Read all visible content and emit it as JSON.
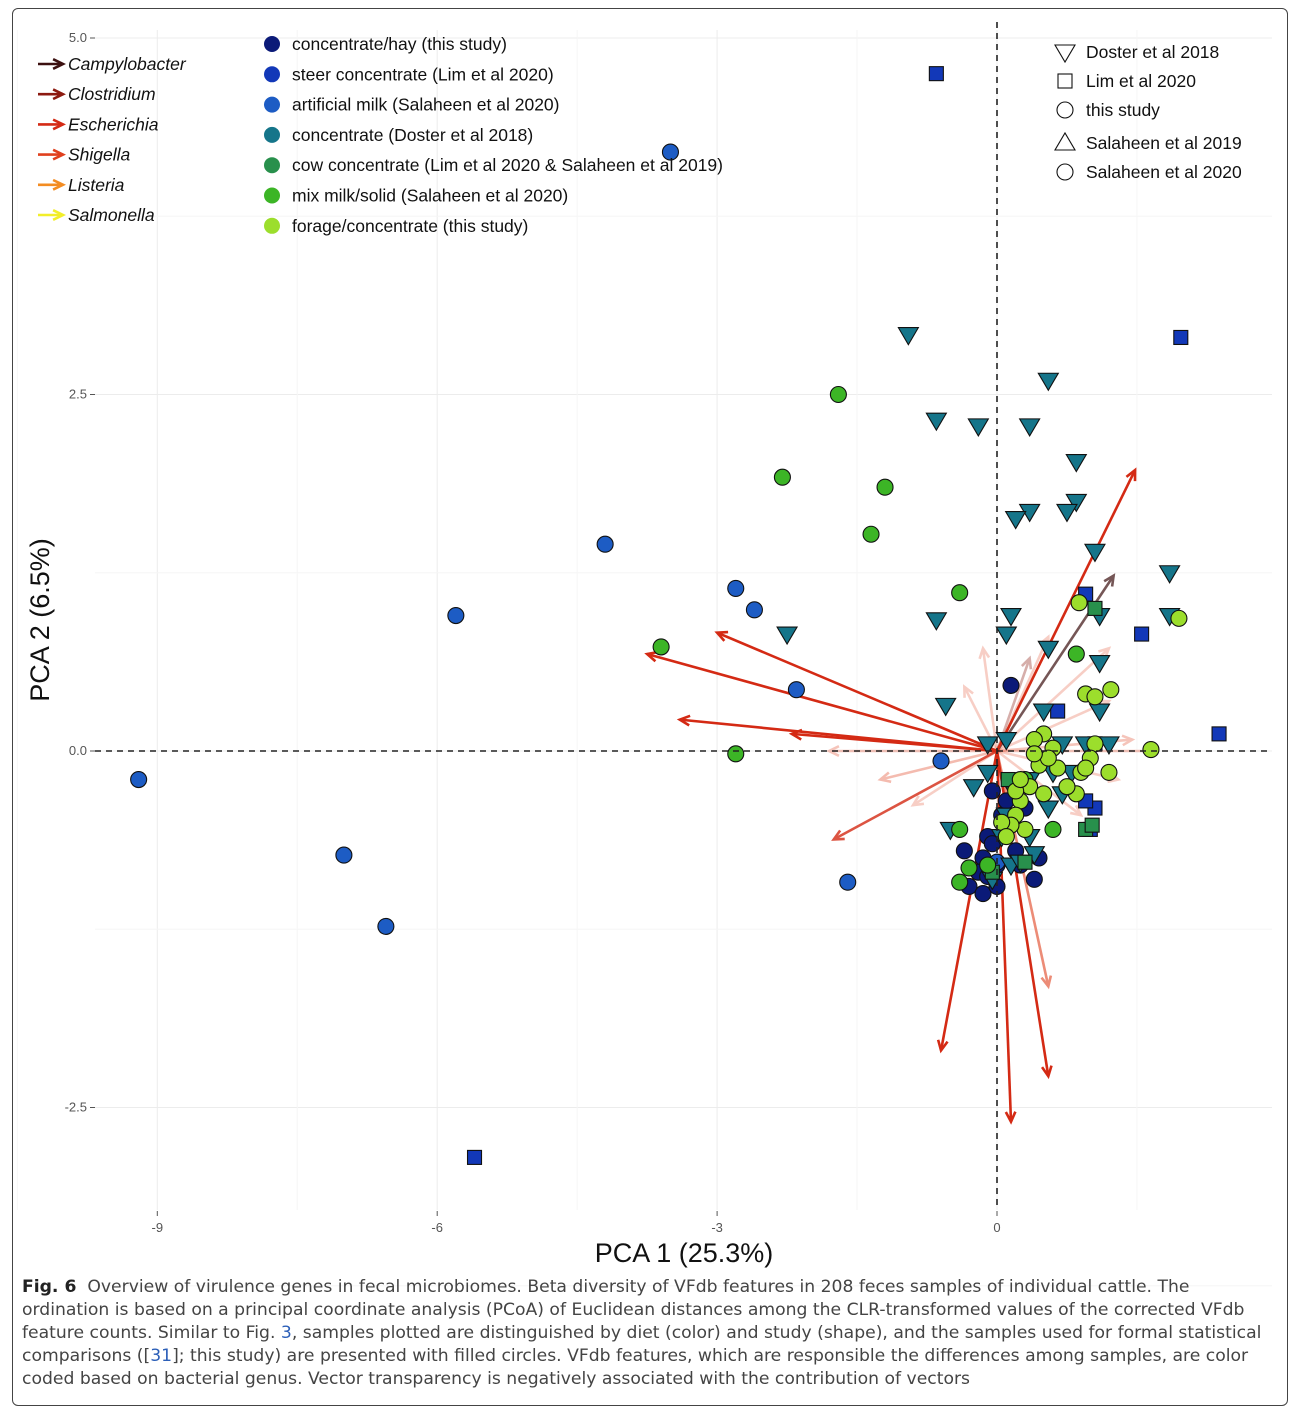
{
  "figure": {
    "label": "Fig. 6",
    "caption_parts": {
      "a": "Overview of virulence genes in fecal microbiomes. Beta diversity of VFdb features in 208 feces samples of individual cattle. The ordination is based on a principal coordinate analysis (PCoA) of Euclidean distances among the CLR-transformed values of the corrected VFdb feature counts. Similar to Fig. ",
      "ref1": "3",
      "b": ", samples plotted are distinguished by diet (color) and study (shape), and the samples used for formal statistical comparisons ([",
      "ref2": "31",
      "c": "]; this study) are presented with filled circles. VFdb features, which are responsible the differences among samples, are color coded based on bacterial genus. Vector transparency is negatively associated with the contribution of vectors"
    }
  },
  "chart_data": {
    "type": "scatter",
    "xlabel": "PCA 1 (25.3%)",
    "ylabel": "PCA 2 (6.5%)",
    "xlim": [
      -10,
      10.2
    ],
    "ylim": [
      -3.25,
      5.1
    ],
    "x_ticks": [
      {
        "v": -9,
        "label": "-9"
      },
      {
        "v": -6,
        "label": "-6"
      },
      {
        "v": -3,
        "label": "-3"
      },
      {
        "v": 0,
        "label": "0"
      }
    ],
    "y_ticks": [
      {
        "v": 5,
        "label": "5.0"
      },
      {
        "v": 2.5,
        "label": "2.5"
      },
      {
        "v": 0,
        "label": "0.0"
      },
      {
        "v": -2.5,
        "label": "-2.5"
      }
    ],
    "grid": true,
    "zero_lines": "dashed",
    "genus_legend": [
      {
        "name": "Campylobacter",
        "color": "#3b1010"
      },
      {
        "name": "Clostridium",
        "color": "#8c1a10"
      },
      {
        "name": "Escherichia",
        "color": "#d42a14"
      },
      {
        "name": "Shigella",
        "color": "#e0401e"
      },
      {
        "name": "Listeria",
        "color": "#f38c22"
      },
      {
        "name": "Salmonella",
        "color": "#f2ee2a"
      }
    ],
    "diet_legend": [
      {
        "name": "concentrate/hay (this study)",
        "color": "#0b1a78"
      },
      {
        "name": "steer concentrate (Lim et al 2020)",
        "color": "#1238b8"
      },
      {
        "name": "artificial milk (Salaheen et al 2020)",
        "color": "#1d5cc4"
      },
      {
        "name": "concentrate (Doster et al 2018)",
        "color": "#15758a"
      },
      {
        "name": "cow concentrate (Lim et al 2020 & Salaheen et al 2019)",
        "color": "#28904c"
      },
      {
        "name": "mix milk/solid (Salaheen et al 2020)",
        "color": "#3cb526"
      },
      {
        "name": "forage/concentrate (this study)",
        "color": "#9cde2c"
      }
    ],
    "study_legend": [
      {
        "name": "Doster et al 2018",
        "shape": "triangle-down"
      },
      {
        "name": "Lim et al 2020",
        "shape": "square"
      },
      {
        "name": "this study",
        "shape": "circle"
      },
      {
        "name": "Salaheen et al 2019",
        "shape": "triangle-up"
      },
      {
        "name": "Salaheen et al 2020",
        "shape": "circle"
      }
    ],
    "series": [
      {
        "diet": 0,
        "shape": "circle",
        "points": [
          [
            -0.05,
            -0.28
          ],
          [
            0.15,
            0.46
          ],
          [
            0.05,
            -0.45
          ],
          [
            -0.1,
            -0.6
          ],
          [
            -0.15,
            -0.75
          ],
          [
            -0.35,
            -0.7
          ],
          [
            -0.2,
            -0.85
          ],
          [
            -0.3,
            -0.95
          ],
          [
            -0.15,
            -1.0
          ],
          [
            0.0,
            -0.95
          ],
          [
            0.25,
            -0.8
          ],
          [
            0.4,
            -0.9
          ],
          [
            0.1,
            -0.55
          ],
          [
            -0.05,
            -0.65
          ],
          [
            0.2,
            -0.7
          ],
          [
            0.3,
            -0.4
          ],
          [
            0.1,
            -0.35
          ],
          [
            -0.1,
            -0.88
          ],
          [
            0.45,
            -0.75
          ],
          [
            0.0,
            -0.8
          ]
        ]
      },
      {
        "diet": 1,
        "shape": "square",
        "points": [
          [
            -0.65,
            4.75
          ],
          [
            1.97,
            2.9
          ],
          [
            -5.6,
            -2.85
          ],
          [
            1.55,
            0.82
          ],
          [
            2.38,
            0.12
          ],
          [
            0.95,
            1.1
          ],
          [
            0.65,
            0.28
          ],
          [
            1.05,
            -0.4
          ],
          [
            0.95,
            -0.35
          ],
          [
            1.0,
            -0.55
          ],
          [
            1.05,
            0.05
          ]
        ]
      },
      {
        "diet": 2,
        "shape": "circle",
        "points": [
          [
            -9.2,
            -0.2
          ],
          [
            -7.0,
            -0.73
          ],
          [
            -6.55,
            -1.23
          ],
          [
            -5.8,
            0.95
          ],
          [
            -4.2,
            1.45
          ],
          [
            -3.5,
            4.2
          ],
          [
            -2.8,
            1.14
          ],
          [
            -2.6,
            0.99
          ],
          [
            -2.15,
            0.43
          ],
          [
            -1.6,
            -0.92
          ],
          [
            -0.6,
            -0.07
          ],
          [
            0.0,
            -0.78
          ]
        ]
      },
      {
        "diet": 3,
        "shape": "triangle-down",
        "points": [
          [
            -0.95,
            2.92
          ],
          [
            0.55,
            2.6
          ],
          [
            -0.65,
            2.32
          ],
          [
            -0.2,
            2.28
          ],
          [
            0.35,
            2.28
          ],
          [
            0.85,
            2.03
          ],
          [
            0.85,
            1.75
          ],
          [
            0.75,
            1.68
          ],
          [
            0.35,
            1.68
          ],
          [
            0.2,
            1.63
          ],
          [
            1.05,
            1.4
          ],
          [
            1.85,
            1.25
          ],
          [
            1.85,
            0.95
          ],
          [
            1.1,
            0.95
          ],
          [
            0.15,
            0.95
          ],
          [
            -0.65,
            0.92
          ],
          [
            0.1,
            0.82
          ],
          [
            -2.25,
            0.82
          ],
          [
            0.55,
            0.72
          ],
          [
            1.1,
            0.62
          ],
          [
            -0.55,
            0.32
          ],
          [
            0.5,
            0.28
          ],
          [
            1.1,
            0.28
          ],
          [
            0.1,
            0.08
          ],
          [
            -0.1,
            0.05
          ],
          [
            0.7,
            0.05
          ],
          [
            0.95,
            0.05
          ],
          [
            1.2,
            0.05
          ],
          [
            0.35,
            -0.2
          ],
          [
            0.6,
            -0.15
          ],
          [
            0.8,
            -0.15
          ],
          [
            0.2,
            -0.3
          ],
          [
            -0.1,
            -0.15
          ],
          [
            -0.25,
            -0.25
          ],
          [
            0.1,
            -0.45
          ],
          [
            0.35,
            -0.6
          ],
          [
            0.05,
            -0.6
          ],
          [
            -0.5,
            -0.55
          ],
          [
            0.15,
            -0.8
          ],
          [
            0.4,
            -0.72
          ],
          [
            -0.05,
            -0.9
          ],
          [
            0.25,
            -0.78
          ],
          [
            0.7,
            -0.3
          ],
          [
            0.55,
            -0.4
          ],
          [
            0.45,
            -0.05
          ]
        ]
      },
      {
        "diet": 4,
        "shape": "square",
        "points": [
          [
            1.05,
            1.0
          ],
          [
            0.95,
            -0.55
          ],
          [
            1.02,
            -0.52
          ],
          [
            -0.05,
            -0.85
          ],
          [
            0.3,
            -0.78
          ],
          [
            0.12,
            -0.2
          ]
        ]
      },
      {
        "diet": 5,
        "shape": "circle",
        "points": [
          [
            -1.7,
            2.5
          ],
          [
            -2.3,
            1.92
          ],
          [
            -1.2,
            1.85
          ],
          [
            -1.35,
            1.52
          ],
          [
            -0.4,
            1.11
          ],
          [
            -3.6,
            0.73
          ],
          [
            -2.8,
            -0.02
          ],
          [
            0.85,
            0.68
          ],
          [
            -0.4,
            -0.55
          ],
          [
            -0.4,
            -0.92
          ],
          [
            -0.3,
            -0.82
          ],
          [
            0.6,
            -0.55
          ],
          [
            0.3,
            -0.2
          ],
          [
            -0.1,
            -0.8
          ]
        ]
      },
      {
        "diet": 6,
        "shape": "circle",
        "points": [
          [
            0.88,
            1.04
          ],
          [
            1.95,
            0.93
          ],
          [
            0.95,
            0.4
          ],
          [
            1.05,
            0.38
          ],
          [
            1.22,
            0.43
          ],
          [
            1.65,
            0.01
          ],
          [
            0.5,
            0.12
          ],
          [
            0.4,
            0.08
          ],
          [
            0.6,
            0.02
          ],
          [
            1.05,
            0.05
          ],
          [
            1.0,
            -0.05
          ],
          [
            0.45,
            -0.1
          ],
          [
            0.65,
            -0.12
          ],
          [
            0.35,
            -0.25
          ],
          [
            0.25,
            -0.35
          ],
          [
            0.2,
            -0.45
          ],
          [
            0.3,
            -0.55
          ],
          [
            0.15,
            -0.52
          ],
          [
            0.05,
            -0.5
          ],
          [
            0.85,
            -0.3
          ],
          [
            0.75,
            -0.25
          ],
          [
            0.5,
            -0.3
          ],
          [
            0.2,
            -0.28
          ],
          [
            0.1,
            -0.6
          ],
          [
            0.25,
            -0.2
          ],
          [
            1.2,
            -0.15
          ],
          [
            0.9,
            -0.15
          ],
          [
            0.95,
            -0.12
          ],
          [
            0.55,
            -0.05
          ],
          [
            0.4,
            -0.02
          ]
        ]
      }
    ],
    "vectors": [
      {
        "genus": 2,
        "alpha": 1.0,
        "end": [
          1.48,
          1.97
        ]
      },
      {
        "genus": 0,
        "alpha": 0.7,
        "end": [
          1.25,
          1.23
        ]
      },
      {
        "genus": 2,
        "alpha": 1.0,
        "end": [
          -3.0,
          0.83
        ]
      },
      {
        "genus": 2,
        "alpha": 1.0,
        "end": [
          -3.75,
          0.68
        ]
      },
      {
        "genus": 2,
        "alpha": 1.0,
        "end": [
          -3.4,
          0.22
        ]
      },
      {
        "genus": 2,
        "alpha": 1.0,
        "end": [
          -2.2,
          0.12
        ]
      },
      {
        "genus": 2,
        "alpha": 0.8,
        "end": [
          -1.75,
          -0.62
        ]
      },
      {
        "genus": 2,
        "alpha": 1.0,
        "end": [
          -0.6,
          -2.1
        ]
      },
      {
        "genus": 2,
        "alpha": 1.0,
        "end": [
          0.15,
          -2.6
        ]
      },
      {
        "genus": 2,
        "alpha": 1.0,
        "end": [
          0.55,
          -2.28
        ]
      },
      {
        "genus": 3,
        "alpha": 0.6,
        "end": [
          0.55,
          -1.65
        ]
      },
      {
        "genus": 3,
        "alpha": 0.35,
        "end": [
          -1.25,
          -0.2
        ]
      },
      {
        "genus": 3,
        "alpha": 0.3,
        "end": [
          -1.8,
          0.0
        ]
      },
      {
        "genus": 3,
        "alpha": 0.3,
        "end": [
          1.7,
          0.0
        ]
      },
      {
        "genus": 3,
        "alpha": 0.3,
        "end": [
          1.45,
          0.08
        ]
      },
      {
        "genus": 3,
        "alpha": 0.25,
        "end": [
          -0.15,
          0.72
        ]
      },
      {
        "genus": 3,
        "alpha": 0.25,
        "end": [
          0.55,
          0.8
        ]
      },
      {
        "genus": 3,
        "alpha": 0.25,
        "end": [
          1.2,
          0.72
        ]
      },
      {
        "genus": 3,
        "alpha": 0.25,
        "end": [
          1.2,
          0.35
        ]
      },
      {
        "genus": 3,
        "alpha": 0.25,
        "end": [
          1.3,
          -0.2
        ]
      },
      {
        "genus": 3,
        "alpha": 0.25,
        "end": [
          0.9,
          -0.45
        ]
      },
      {
        "genus": 3,
        "alpha": 0.25,
        "end": [
          -0.9,
          -0.38
        ]
      },
      {
        "genus": 3,
        "alpha": 0.25,
        "end": [
          -0.35,
          0.45
        ]
      },
      {
        "genus": 1,
        "alpha": 0.35,
        "end": [
          0.35,
          0.65
        ]
      }
    ]
  }
}
